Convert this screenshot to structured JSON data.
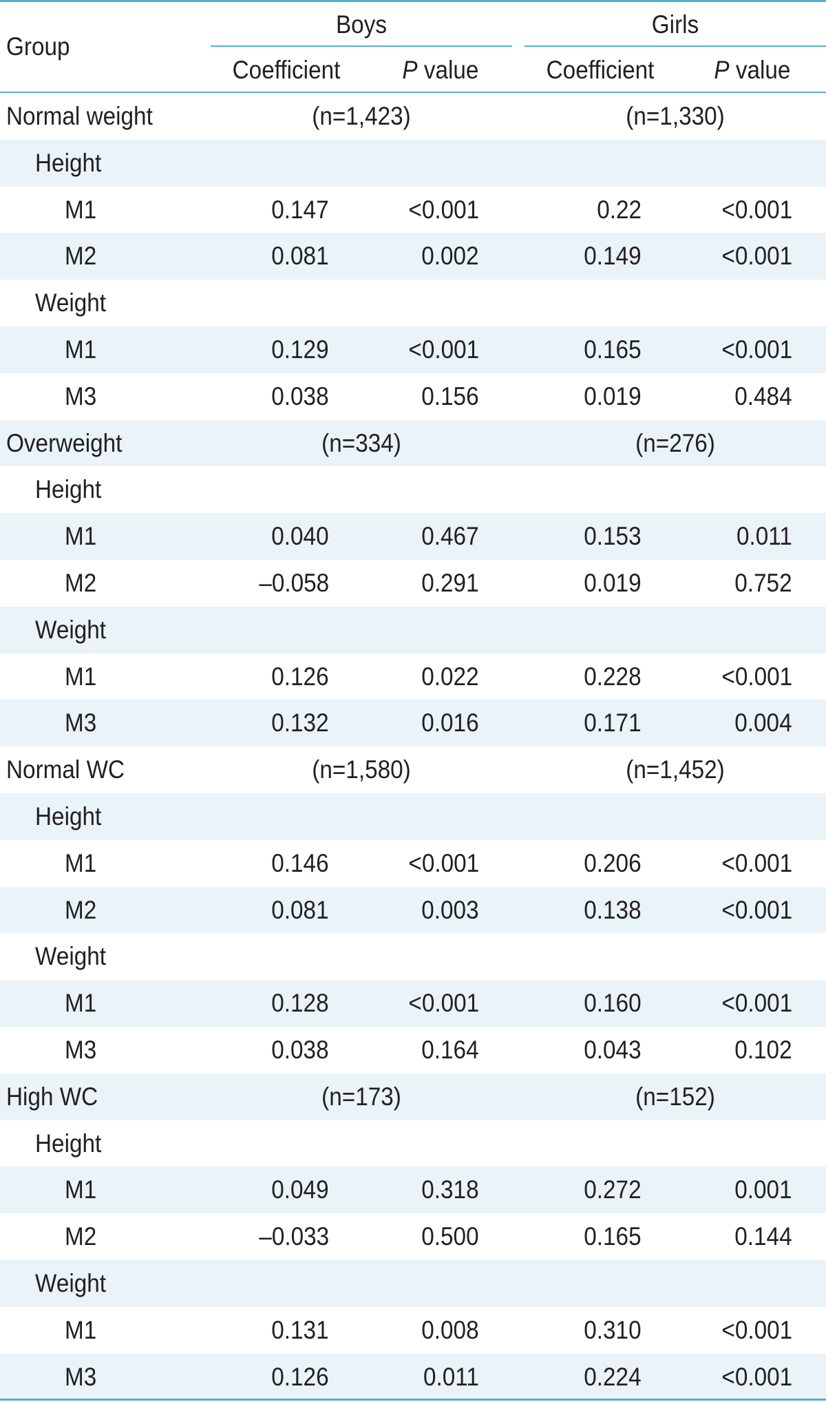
{
  "header": {
    "group": "Group",
    "boys": "Boys",
    "girls": "Girls",
    "coefficient": "Coefficient",
    "p_italic": "P",
    "p_rest": " value"
  },
  "sections": [
    {
      "label": "Normal weight",
      "boys_n": "(n=1,423)",
      "girls_n": "(n=1,330)",
      "subgroups": [
        {
          "label": "Height",
          "rows": [
            {
              "model": "M1",
              "boys_coef": "0.147",
              "boys_p": "<0.001",
              "girls_coef": "0.22",
              "girls_p": "<0.001"
            },
            {
              "model": "M2",
              "boys_coef": "0.081",
              "boys_p": "0.002",
              "girls_coef": "0.149",
              "girls_p": "<0.001"
            }
          ]
        },
        {
          "label": "Weight",
          "rows": [
            {
              "model": "M1",
              "boys_coef": "0.129",
              "boys_p": "<0.001",
              "girls_coef": "0.165",
              "girls_p": "<0.001"
            },
            {
              "model": "M3",
              "boys_coef": "0.038",
              "boys_p": "0.156",
              "girls_coef": "0.019",
              "girls_p": "0.484"
            }
          ]
        }
      ]
    },
    {
      "label": "Overweight",
      "boys_n": "(n=334)",
      "girls_n": "(n=276)",
      "subgroups": [
        {
          "label": "Height",
          "rows": [
            {
              "model": "M1",
              "boys_coef": "0.040",
              "boys_p": "0.467",
              "girls_coef": "0.153",
              "girls_p": "0.011"
            },
            {
              "model": "M2",
              "boys_coef": "–0.058",
              "boys_p": "0.291",
              "girls_coef": "0.019",
              "girls_p": "0.752"
            }
          ]
        },
        {
          "label": "Weight",
          "rows": [
            {
              "model": "M1",
              "boys_coef": "0.126",
              "boys_p": "0.022",
              "girls_coef": "0.228",
              "girls_p": "<0.001"
            },
            {
              "model": "M3",
              "boys_coef": "0.132",
              "boys_p": "0.016",
              "girls_coef": "0.171",
              "girls_p": "0.004"
            }
          ]
        }
      ]
    },
    {
      "label": "Normal WC",
      "boys_n": "(n=1,580)",
      "girls_n": "(n=1,452)",
      "subgroups": [
        {
          "label": "Height",
          "rows": [
            {
              "model": "M1",
              "boys_coef": "0.146",
              "boys_p": "<0.001",
              "girls_coef": "0.206",
              "girls_p": "<0.001"
            },
            {
              "model": "M2",
              "boys_coef": "0.081",
              "boys_p": "0.003",
              "girls_coef": "0.138",
              "girls_p": "<0.001"
            }
          ]
        },
        {
          "label": "Weight",
          "rows": [
            {
              "model": "M1",
              "boys_coef": "0.128",
              "boys_p": "<0.001",
              "girls_coef": "0.160",
              "girls_p": "<0.001"
            },
            {
              "model": "M3",
              "boys_coef": "0.038",
              "boys_p": "0.164",
              "girls_coef": "0.043",
              "girls_p": "0.102"
            }
          ]
        }
      ]
    },
    {
      "label": "High WC",
      "boys_n": "(n=173)",
      "girls_n": "(n=152)",
      "subgroups": [
        {
          "label": "Height",
          "rows": [
            {
              "model": "M1",
              "boys_coef": "0.049",
              "boys_p": "0.318",
              "girls_coef": "0.272",
              "girls_p": "0.001"
            },
            {
              "model": "M2",
              "boys_coef": "–0.033",
              "boys_p": "0.500",
              "girls_coef": "0.165",
              "girls_p": "0.144"
            }
          ]
        },
        {
          "label": "Weight",
          "rows": [
            {
              "model": "M1",
              "boys_coef": "0.131",
              "boys_p": "0.008",
              "girls_coef": "0.310",
              "girls_p": "<0.001"
            },
            {
              "model": "M3",
              "boys_coef": "0.126",
              "boys_p": "0.011",
              "girls_coef": "0.224",
              "girls_p": "<0.001"
            }
          ]
        }
      ]
    }
  ]
}
